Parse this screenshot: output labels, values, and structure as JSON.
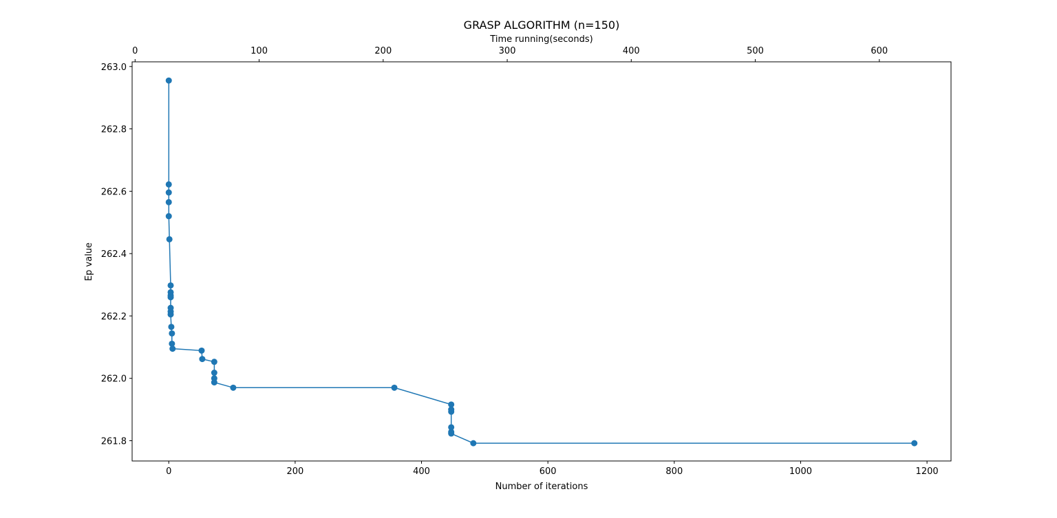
{
  "chart_data": {
    "type": "line",
    "title": "GRASP ALGORITHM (n=150)",
    "xlabel": "Number of iterations",
    "ylabel": "Ep value",
    "top_xlabel": "Time running(seconds)",
    "xlim": [
      -58,
      1238
    ],
    "ylim": [
      261.735,
      263.015
    ],
    "top_xlim": [
      -2.4,
      657.8
    ],
    "x_ticks": [
      0,
      200,
      400,
      600,
      800,
      1000,
      1200
    ],
    "y_ticks": [
      261.8,
      262.0,
      262.2,
      262.4,
      262.6,
      262.8,
      263.0
    ],
    "top_ticks": [
      0,
      100,
      200,
      300,
      400,
      500,
      600
    ],
    "x_tick_labels": [
      "0",
      "200",
      "400",
      "600",
      "800",
      "1000",
      "1200"
    ],
    "y_tick_labels": [
      "261.8",
      "262.0",
      "262.2",
      "262.4",
      "262.6",
      "262.8",
      "263.0"
    ],
    "top_tick_labels": [
      "0",
      "100",
      "200",
      "300",
      "400",
      "500",
      "600"
    ],
    "grid": false,
    "series": [
      {
        "color": "#1f77b4",
        "marker": "circle",
        "x": [
          0,
          0,
          0,
          0,
          0,
          1,
          3,
          3,
          3,
          3,
          3,
          3,
          3,
          4,
          5,
          5,
          6,
          52,
          53,
          72,
          72,
          72,
          72,
          102,
          357,
          447,
          447,
          447,
          447,
          447,
          447,
          482,
          1180
        ],
        "y": [
          262.955,
          262.622,
          262.596,
          262.565,
          262.52,
          262.446,
          262.298,
          262.276,
          262.266,
          262.26,
          262.226,
          262.214,
          262.205,
          262.165,
          262.144,
          262.111,
          262.095,
          262.089,
          262.062,
          262.053,
          262.018,
          262.0,
          261.987,
          261.97,
          261.97,
          261.916,
          261.9,
          261.893,
          261.843,
          261.828,
          261.823,
          261.792,
          261.792
        ]
      }
    ]
  }
}
